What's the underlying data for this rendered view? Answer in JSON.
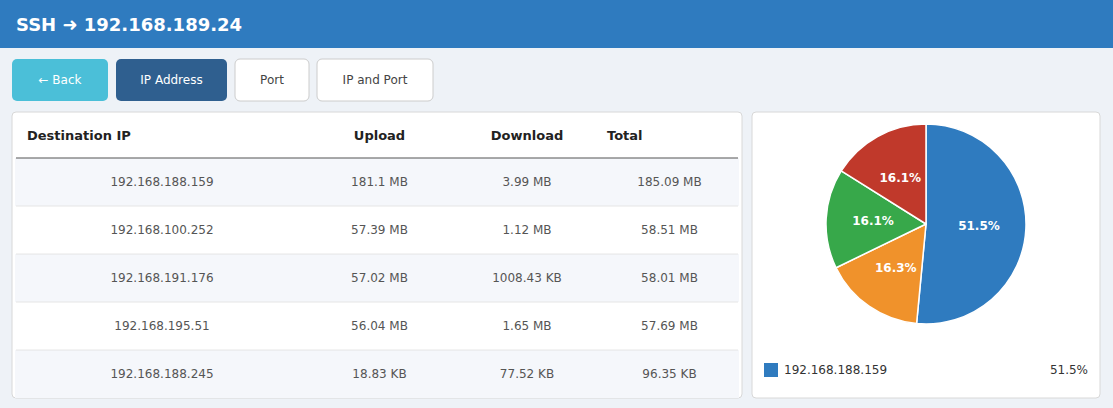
{
  "chart_data": [
    {
      "type": "table",
      "title": "SSH ➜ 192.168.189.24",
      "annotations": [
        "← Back",
        "IP Address",
        "Port",
        "IP and Port"
      ],
      "columns": [
        "Destination IP",
        "Upload",
        "Download",
        "Total"
      ],
      "rows": [
        [
          "192.168.188.159",
          "181.1 MB",
          "3.99 MB",
          "185.09 MB"
        ],
        [
          "192.168.100.252",
          "57.39 MB",
          "1.12 MB",
          "58.51 MB"
        ],
        [
          "192.168.191.176",
          "57.02 MB",
          "1008.43 KB",
          "58.01 MB"
        ],
        [
          "192.168.195.51",
          "56.04 MB",
          "1.65 MB",
          "57.69 MB"
        ],
        [
          "192.168.188.245",
          "18.83 KB",
          "77.52 KB",
          "96.35 KB"
        ]
      ]
    },
    {
      "type": "pie",
      "categories": [
        "192.168.188.159",
        null,
        null,
        null
      ],
      "values": [
        51.5,
        16.3,
        16.1,
        16.1
      ],
      "value_labels": [
        "51.5%",
        "16.3%",
        "16.1%",
        "16.1%"
      ],
      "colors": [
        "#2f7bbf",
        "#f0922b",
        "#37a84a",
        "#c0392b"
      ],
      "data_labels": true,
      "legend": "bottom"
    }
  ]
}
